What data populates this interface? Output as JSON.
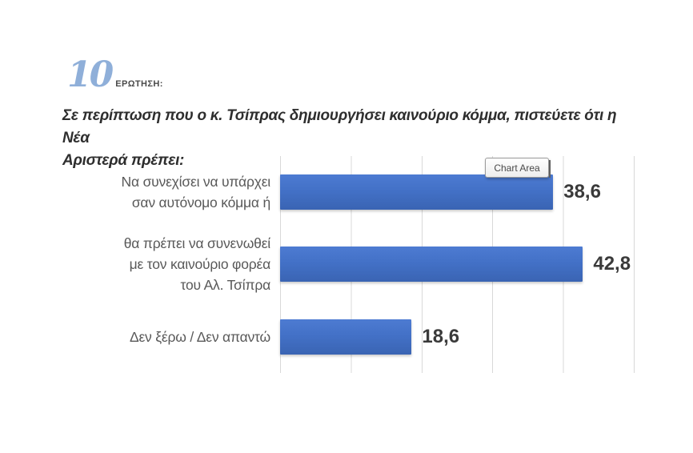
{
  "header": {
    "question_number": "10",
    "question_label": "ΕΡΩΤΗΣΗ:",
    "question_text": "Σε περίπτωση που ο κ. Τσίπρας δημιουργήσει καινούριο κόμμα, πιστεύετε ότι η Νέα Αριστερά πρέπει:",
    "question_lines": [
      "Σε περίπτωση που ο κ. Τσίπρας δημιουργήσει καινούριο κόμμα, πιστεύετε ότι η Νέα",
      "Αριστερά πρέπει:"
    ]
  },
  "tooltip": {
    "label": "Chart Area"
  },
  "colors": {
    "bar": "#4472C4",
    "bar_gradient_top": "#4d7bd2",
    "bar_gradient_bottom": "#3a64b3",
    "gridline": "#d8d8d8",
    "question_number_blue": "#8FAFD9",
    "question_text": "#2e2e2e",
    "category_text": "#595959",
    "value_text": "#3a3a3a"
  },
  "chart_data": {
    "type": "bar",
    "orientation": "horizontal",
    "title": "",
    "xlabel": "",
    "ylabel": "",
    "categories": [
      "Να συνεχίσει να υπάρχει σαν αυτόνομο κόμμα ή",
      "θα πρέπει να συνενωθεί με τον καινούριο φορέα του Αλ. Τσίπρα",
      "Δεν ξέρω / Δεν απαντώ"
    ],
    "category_lines": [
      [
        "Να συνεχίσει να υπάρχει",
        "σαν αυτόνομο κόμμα ή"
      ],
      [
        "θα πρέπει να συνενωθεί",
        "με τον καινούριο φορέα",
        "του Αλ. Τσίπρα"
      ],
      [
        "Δεν ξέρω / Δεν απαντώ"
      ]
    ],
    "values": [
      38.6,
      42.8,
      18.6
    ],
    "value_labels": [
      "38,6",
      "42,8",
      "18,6"
    ],
    "xlim": [
      0,
      50
    ],
    "gridline_step": 10,
    "grid": "vertical-gridlines-only",
    "legend": "none",
    "axis_tick_labels": "none"
  }
}
